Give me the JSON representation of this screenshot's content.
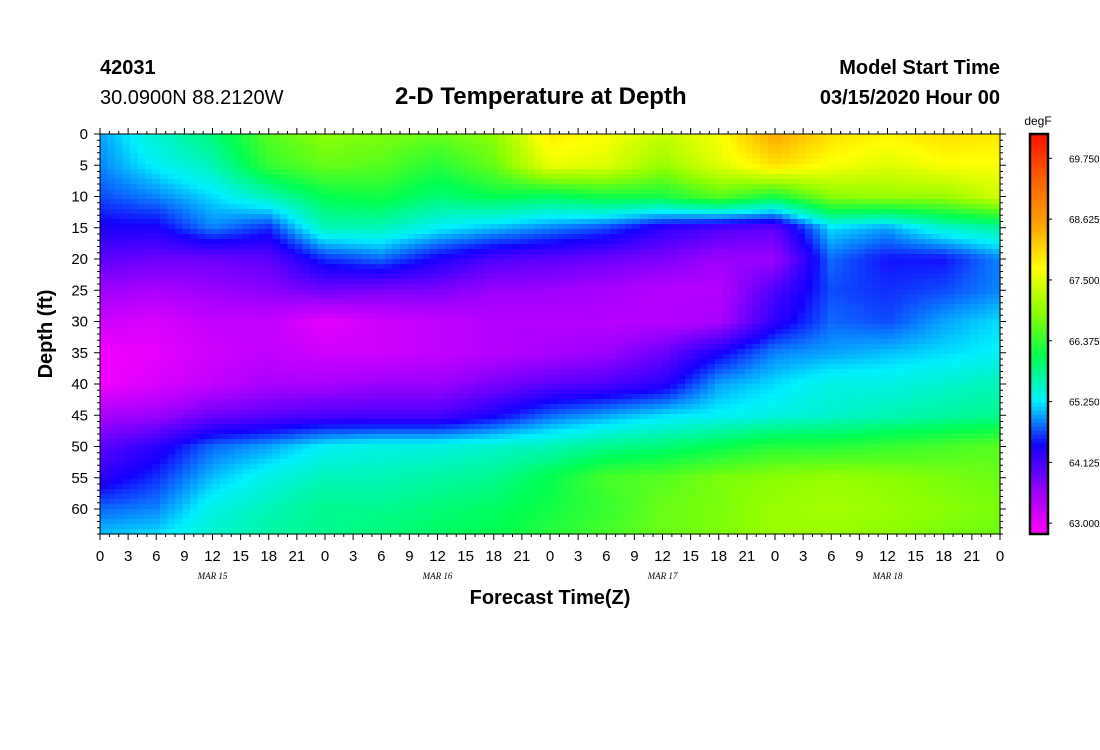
{
  "header": {
    "station_id": "42031",
    "location": "30.0900N 88.2120W",
    "title": "2-D Temperature at Depth",
    "start_label": "Model Start Time",
    "start_value": "03/15/2020 Hour 00"
  },
  "chart_data": {
    "type": "heatmap",
    "title": "2-D Temperature at Depth",
    "xlabel": "Forecast Time(Z)",
    "ylabel": "Depth (ft)",
    "x_range_hours": [
      0,
      96
    ],
    "x_tick_step_hours": 3,
    "x_tick_labels": [
      "0",
      "3",
      "6",
      "9",
      "12",
      "15",
      "18",
      "21",
      "0",
      "3",
      "6",
      "9",
      "12",
      "15",
      "18",
      "21",
      "0",
      "3",
      "6",
      "9",
      "12",
      "15",
      "18",
      "21",
      "0",
      "3",
      "6",
      "9",
      "12",
      "15",
      "18",
      "21",
      "0"
    ],
    "date_labels": [
      {
        "label": "MAR 15",
        "hour": 12
      },
      {
        "label": "MAR 16",
        "hour": 36
      },
      {
        "label": "MAR 17",
        "hour": 60
      },
      {
        "label": "MAR 18",
        "hour": 84
      }
    ],
    "y_range_ft": [
      0,
      64
    ],
    "y_ticks": [
      0,
      5,
      10,
      15,
      20,
      25,
      30,
      35,
      40,
      45,
      50,
      55,
      60
    ],
    "colorbar": {
      "unit": "degF",
      "min": 62.8,
      "max": 70.2,
      "tick_values": [
        63.0,
        64.125,
        65.25,
        66.375,
        67.5,
        68.625,
        69.75
      ],
      "tick_labels": [
        "63.000",
        "64.125",
        "65.250",
        "66.375",
        "67.500",
        "68.625",
        "69.750"
      ],
      "colors": [
        "#ff00ff",
        "#9900ff",
        "#1400ff",
        "#00f0ff",
        "#00ff50",
        "#8cff00",
        "#ffff00",
        "#ffa000",
        "#ff6000",
        "#ff1000"
      ]
    },
    "grid_times_hours": [
      0,
      6,
      12,
      18,
      24,
      30,
      36,
      42,
      48,
      54,
      60,
      66,
      72,
      78,
      84,
      90,
      96
    ],
    "grid_depths_ft": [
      0,
      5,
      10,
      15,
      20,
      25,
      30,
      35,
      40,
      45,
      50,
      55,
      60,
      64
    ],
    "temperature_degF": [
      [
        65.0,
        65.5,
        65.9,
        66.6,
        66.9,
        66.8,
        66.7,
        66.9,
        67.9,
        67.7,
        67.3,
        67.7,
        68.5,
        68.0,
        67.8,
        68.0,
        67.9
      ],
      [
        64.9,
        65.3,
        65.6,
        66.4,
        66.7,
        66.6,
        66.3,
        66.7,
        67.6,
        67.5,
        67.0,
        67.5,
        68.0,
        67.7,
        67.5,
        67.7,
        67.7
      ],
      [
        64.7,
        64.9,
        65.2,
        65.6,
        66.1,
        66.2,
        65.9,
        66.1,
        66.0,
        66.2,
        66.2,
        66.6,
        66.2,
        66.9,
        67.0,
        67.0,
        67.4
      ],
      [
        64.4,
        64.4,
        64.9,
        64.6,
        65.6,
        65.6,
        65.3,
        65.1,
        64.9,
        64.7,
        64.3,
        64.1,
        64.0,
        65.2,
        65.0,
        65.5,
        65.7
      ],
      [
        64.0,
        63.9,
        63.9,
        64.0,
        64.6,
        64.8,
        64.4,
        64.1,
        64.0,
        63.9,
        63.8,
        63.6,
        63.6,
        64.8,
        64.5,
        64.5,
        64.9
      ],
      [
        63.6,
        63.5,
        63.6,
        63.7,
        63.9,
        63.8,
        63.8,
        63.6,
        63.6,
        63.5,
        63.4,
        63.4,
        64.1,
        64.7,
        64.6,
        64.7,
        64.9
      ],
      [
        63.2,
        63.1,
        63.3,
        63.3,
        63.0,
        63.2,
        63.3,
        63.4,
        63.4,
        63.4,
        63.4,
        63.5,
        64.3,
        64.8,
        64.7,
        65.0,
        65.2
      ],
      [
        62.9,
        63.0,
        63.2,
        63.3,
        63.2,
        63.2,
        63.3,
        63.4,
        63.5,
        63.6,
        63.9,
        64.4,
        64.9,
        65.0,
        65.1,
        65.2,
        65.3
      ],
      [
        62.9,
        63.1,
        63.3,
        63.5,
        63.5,
        63.6,
        63.6,
        63.8,
        64.0,
        64.1,
        64.3,
        65.0,
        65.2,
        65.4,
        65.4,
        65.5,
        65.6
      ],
      [
        63.5,
        63.6,
        63.9,
        64.0,
        64.1,
        64.1,
        64.1,
        64.4,
        64.8,
        65.0,
        65.2,
        65.3,
        65.4,
        65.5,
        65.6,
        65.7,
        65.8
      ],
      [
        64.0,
        64.3,
        64.8,
        65.0,
        65.3,
        65.4,
        65.4,
        65.5,
        65.6,
        65.8,
        65.9,
        66.1,
        66.3,
        66.3,
        66.4,
        66.5,
        66.6
      ],
      [
        64.3,
        64.6,
        65.1,
        65.4,
        65.6,
        65.6,
        65.7,
        65.8,
        66.1,
        66.5,
        66.6,
        66.8,
        66.9,
        67.0,
        66.9,
        66.8,
        66.7
      ],
      [
        64.8,
        64.9,
        65.4,
        65.6,
        65.8,
        65.8,
        65.9,
        66.0,
        66.2,
        66.4,
        66.7,
        66.8,
        67.0,
        67.1,
        67.0,
        66.9,
        66.8
      ],
      [
        65.1,
        65.2,
        65.5,
        65.7,
        65.8,
        65.9,
        66.0,
        66.1,
        66.3,
        66.5,
        66.7,
        66.8,
        67.0,
        67.0,
        66.9,
        66.8,
        66.7
      ]
    ]
  }
}
